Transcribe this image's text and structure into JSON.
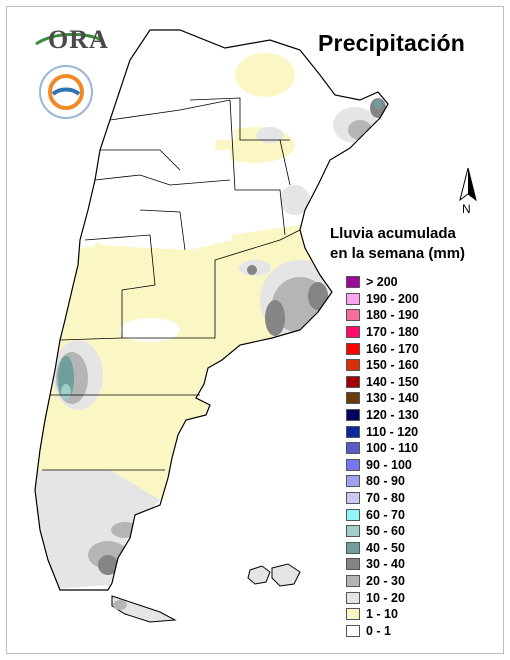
{
  "title": "Precipitación",
  "logo": {
    "text": "ORA",
    "accent": "#3a8a3a"
  },
  "seal": {
    "name": "ARGENTINA",
    "colors": {
      "ring": "#2e74b5",
      "orange": "#f08a24"
    }
  },
  "north_label": "N",
  "legend": {
    "title_line1": "Lluvia acumulada",
    "title_line2": "en la semana (mm)",
    "classes": [
      {
        "label": "> 200",
        "color": "#9a0a9a"
      },
      {
        "label": "190 - 200",
        "color": "#f7a6ef"
      },
      {
        "label": "180 - 190",
        "color": "#f76f9f"
      },
      {
        "label": "170 - 180",
        "color": "#ff0a6e"
      },
      {
        "label": "160 - 170",
        "color": "#ff0000"
      },
      {
        "label": "150 - 160",
        "color": "#d7300b"
      },
      {
        "label": "140 - 150",
        "color": "#a00000"
      },
      {
        "label": "130 - 140",
        "color": "#6b3a0a"
      },
      {
        "label": "120 - 130",
        "color": "#00005f"
      },
      {
        "label": "110 - 120",
        "color": "#0a2a9a"
      },
      {
        "label": "100 - 110",
        "color": "#5a5ac8"
      },
      {
        "label": "90 - 100",
        "color": "#7777f5"
      },
      {
        "label": "80 - 90",
        "color": "#a0a0f0"
      },
      {
        "label": "70 - 80",
        "color": "#c8c8f7"
      },
      {
        "label": "60 - 70",
        "color": "#8ff7f7"
      },
      {
        "label": "50 - 60",
        "color": "#9fcfc8"
      },
      {
        "label": "40 - 50",
        "color": "#6e9e9e"
      },
      {
        "label": "30 - 40",
        "color": "#858585"
      },
      {
        "label": "20 - 30",
        "color": "#b5b5b5"
      },
      {
        "label": "10 - 20",
        "color": "#e5e5e5"
      },
      {
        "label": "1 - 10",
        "color": "#fbf7c4"
      },
      {
        "label": "0 - 1",
        "color": "#ffffff"
      }
    ]
  }
}
